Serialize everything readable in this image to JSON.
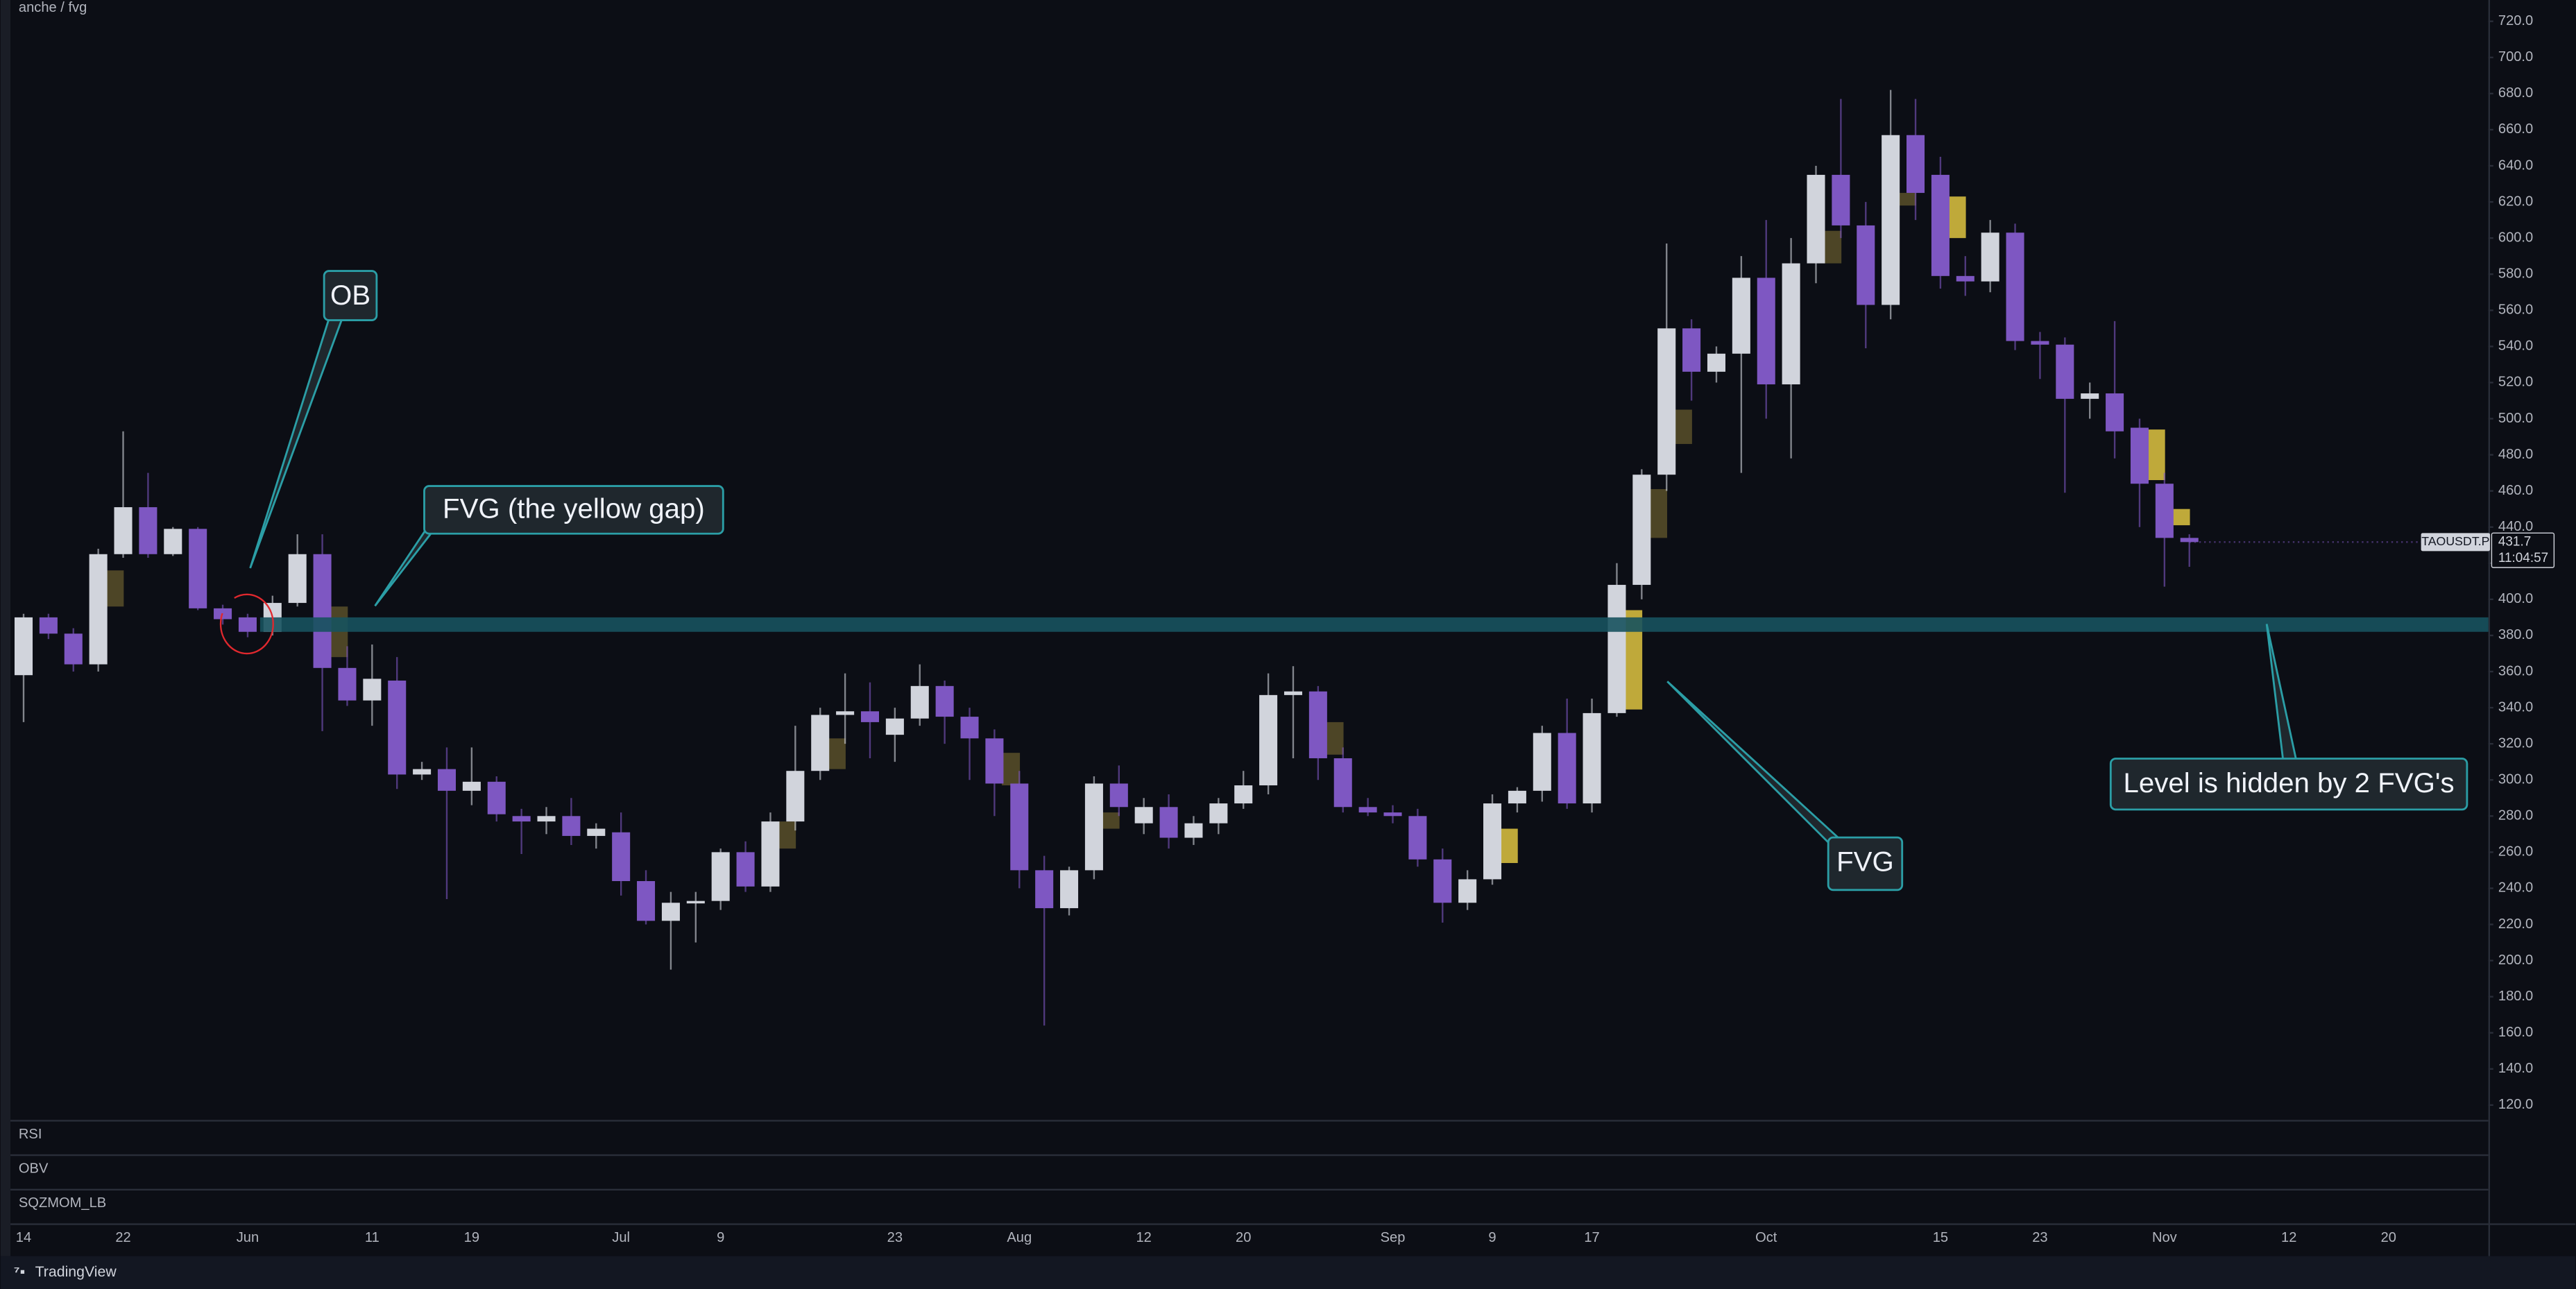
{
  "chart_data": {
    "type": "candlestick",
    "title": "anche / fvg",
    "symbol": "TAOUSDT.P",
    "last_price": 431.7,
    "countdown": "11:04:57",
    "panes": [
      "RSI",
      "OBV",
      "SQZMOM_LB"
    ],
    "brand": "TradingView",
    "up_color": "#d1d4dc",
    "down_color": "#7e57c2",
    "categories": [
      "14",
      null,
      null,
      null,
      "22",
      null,
      null,
      null,
      null,
      "Jun",
      null,
      null,
      null,
      null,
      "11",
      null,
      null,
      null,
      "19",
      null,
      null,
      null,
      null,
      null,
      "Jul",
      null,
      null,
      null,
      "9",
      null,
      null,
      null,
      null,
      null,
      null,
      "23",
      null,
      null,
      null,
      null,
      "Aug",
      null,
      null,
      null,
      null,
      "12",
      null,
      null,
      null,
      "20",
      null,
      null,
      null,
      null,
      null,
      "Sep",
      null,
      null,
      null,
      "9",
      null,
      null,
      null,
      "17",
      null,
      null,
      null,
      null,
      null,
      null,
      "Oct",
      null,
      null,
      null,
      null,
      null,
      null,
      "15",
      null,
      null,
      null,
      "23",
      null,
      null,
      null,
      null,
      "Nov",
      null,
      null,
      null,
      null,
      "12",
      null,
      null,
      null,
      "20"
    ],
    "open": [
      358,
      390,
      381,
      364,
      425,
      451,
      425,
      439,
      395,
      390,
      382,
      398,
      425,
      362,
      344,
      355,
      303,
      306,
      294,
      299,
      280,
      277,
      280,
      269,
      271,
      244,
      222,
      232,
      233,
      260,
      241,
      277,
      305,
      336,
      338,
      325,
      334,
      352,
      335,
      323,
      298,
      250,
      229,
      250,
      298,
      276,
      285,
      268,
      276,
      287,
      297,
      347,
      349,
      312,
      285,
      282,
      280,
      256,
      232,
      245,
      287,
      294,
      326,
      287,
      337,
      408,
      469,
      550,
      526,
      536,
      578,
      519,
      586,
      635,
      607,
      563,
      657,
      635,
      579,
      576,
      603,
      543,
      541,
      511,
      514,
      495,
      464,
      434,
      null,
      null,
      null,
      null,
      null,
      null,
      null,
      null
    ],
    "high": [
      392,
      392,
      384,
      428,
      493,
      470,
      440,
      440,
      397,
      392,
      402,
      436,
      436,
      374,
      375,
      368,
      310,
      318,
      318,
      302,
      284,
      285,
      290,
      276,
      282,
      250,
      238,
      238,
      262,
      266,
      282,
      330,
      340,
      359,
      354,
      340,
      364,
      355,
      340,
      328,
      305,
      258,
      252,
      302,
      308,
      290,
      292,
      280,
      290,
      305,
      359,
      363,
      352,
      318,
      290,
      286,
      284,
      262,
      250,
      292,
      296,
      330,
      345,
      345,
      420,
      472,
      597,
      555,
      540,
      590,
      610,
      600,
      640,
      677,
      620,
      682,
      677,
      645,
      590,
      610,
      608,
      548,
      545,
      520,
      554,
      500,
      470,
      436,
      null,
      null,
      null,
      null,
      null,
      null,
      null,
      null
    ],
    "low": [
      332,
      378,
      360,
      360,
      423,
      423,
      424,
      394,
      386,
      379,
      380,
      396,
      327,
      341,
      330,
      295,
      300,
      234,
      286,
      277,
      259,
      270,
      264,
      262,
      236,
      220,
      195,
      210,
      228,
      238,
      238,
      272,
      300,
      320,
      312,
      310,
      330,
      320,
      300,
      280,
      240,
      164,
      225,
      245,
      280,
      270,
      262,
      264,
      270,
      284,
      292,
      312,
      300,
      282,
      280,
      276,
      252,
      221,
      228,
      242,
      282,
      288,
      284,
      282,
      335,
      400,
      460,
      510,
      520,
      470,
      500,
      478,
      575,
      600,
      539,
      555,
      610,
      572,
      568,
      570,
      538,
      522,
      459,
      500,
      478,
      440,
      407,
      418,
      null,
      null,
      null,
      null,
      null,
      null,
      null,
      null
    ],
    "close": [
      390,
      381,
      364,
      425,
      451,
      425,
      439,
      395,
      389,
      382,
      398,
      425,
      362,
      344,
      356,
      303,
      306,
      294,
      299,
      281,
      277,
      280,
      269,
      273,
      244,
      222,
      232,
      233,
      260,
      241,
      277,
      305,
      336,
      338,
      332,
      334,
      352,
      335,
      323,
      298,
      250,
      229,
      250,
      298,
      285,
      285,
      268,
      276,
      287,
      297,
      347,
      349,
      312,
      285,
      282,
      280,
      256,
      232,
      245,
      287,
      294,
      326,
      287,
      337,
      408,
      469,
      550,
      526,
      536,
      578,
      519,
      586,
      635,
      607,
      563,
      657,
      625,
      579,
      576,
      603,
      543,
      541,
      511,
      514,
      493,
      464,
      434,
      431.7,
      null,
      null,
      null,
      null,
      null,
      null,
      null,
      null
    ],
    "fvg_top": [
      null,
      null,
      null,
      416,
      null,
      null,
      null,
      null,
      null,
      null,
      null,
      null,
      396,
      null,
      null,
      null,
      null,
      null,
      null,
      null,
      null,
      null,
      null,
      null,
      null,
      null,
      null,
      null,
      null,
      null,
      277,
      null,
      323,
      null,
      null,
      null,
      null,
      null,
      null,
      315,
      null,
      null,
      null,
      282,
      null,
      null,
      null,
      null,
      null,
      null,
      null,
      null,
      332,
      null,
      null,
      null,
      null,
      null,
      null,
      273,
      null,
      null,
      null,
      null,
      394,
      461,
      505,
      null,
      null,
      null,
      null,
      null,
      604,
      null,
      null,
      625,
      null,
      623,
      null,
      null,
      null,
      null,
      null,
      null,
      null,
      494,
      450,
      null,
      null,
      null,
      null,
      null,
      null,
      null,
      null,
      null
    ],
    "fvg_bottom": [
      null,
      null,
      null,
      396,
      null,
      null,
      null,
      null,
      null,
      null,
      null,
      null,
      368,
      null,
      null,
      null,
      null,
      null,
      null,
      null,
      null,
      null,
      null,
      null,
      null,
      null,
      null,
      null,
      null,
      null,
      262,
      null,
      306,
      null,
      null,
      null,
      null,
      null,
      null,
      297,
      null,
      null,
      null,
      273,
      null,
      null,
      null,
      null,
      null,
      null,
      null,
      null,
      314,
      null,
      null,
      null,
      null,
      null,
      null,
      254,
      null,
      null,
      null,
      null,
      339,
      434,
      486,
      null,
      null,
      null,
      null,
      null,
      586,
      null,
      null,
      618,
      null,
      600,
      null,
      null,
      null,
      null,
      null,
      null,
      null,
      466,
      441,
      null,
      null,
      null,
      null,
      null,
      null,
      null,
      null,
      null
    ],
    "fvg_color": [
      null,
      null,
      null,
      "#4d4526",
      null,
      null,
      null,
      null,
      null,
      null,
      null,
      null,
      "#4d4526",
      null,
      null,
      null,
      null,
      null,
      null,
      null,
      null,
      null,
      null,
      null,
      null,
      null,
      null,
      null,
      null,
      null,
      "#4d4526",
      null,
      "#4d4526",
      null,
      null,
      null,
      null,
      null,
      null,
      "#4d4526",
      null,
      null,
      null,
      "#4d4526",
      null,
      null,
      null,
      null,
      null,
      null,
      null,
      null,
      "#4d4526",
      null,
      null,
      null,
      null,
      null,
      null,
      "#bfa93a",
      null,
      null,
      null,
      null,
      "#bfa93a",
      "#4d4526",
      "#4d4526",
      null,
      null,
      null,
      null,
      null,
      "#4d4526",
      null,
      null,
      "#4d4526",
      null,
      "#bfa93a",
      null,
      null,
      null,
      null,
      null,
      null,
      null,
      "#bfa93a",
      "#bfa93a",
      null,
      null,
      null,
      null,
      null,
      null,
      null,
      null,
      null
    ],
    "level": {
      "top": 390,
      "bottom": 382,
      "color": "#17525e"
    },
    "ylim": [
      111.8,
      731.8
    ],
    "yticks": [
      {
        "value": 120,
        "label": "120.0"
      },
      {
        "value": 140,
        "label": "140.0"
      },
      {
        "value": 160,
        "label": "160.0"
      },
      {
        "value": 180,
        "label": "180.0"
      },
      {
        "value": 200,
        "label": "200.0"
      },
      {
        "value": 220,
        "label": "220.0"
      },
      {
        "value": 240,
        "label": "240.0"
      },
      {
        "value": 260,
        "label": "260.0"
      },
      {
        "value": 280,
        "label": "280.0"
      },
      {
        "value": 300,
        "label": "300.0"
      },
      {
        "value": 320,
        "label": "320.0"
      },
      {
        "value": 340,
        "label": "340.0"
      },
      {
        "value": 360,
        "label": "360.0"
      },
      {
        "value": 380,
        "label": "380.0"
      },
      {
        "value": 400,
        "label": "400.0"
      },
      {
        "value": 420,
        "label": "420.0"
      },
      {
        "value": 440,
        "label": "440.0"
      },
      {
        "value": 460,
        "label": "460.0"
      },
      {
        "value": 480,
        "label": "480.0"
      },
      {
        "value": 500,
        "label": "500.0"
      },
      {
        "value": 520,
        "label": "520.0"
      },
      {
        "value": 540,
        "label": "540.0"
      },
      {
        "value": 560,
        "label": "560.0"
      },
      {
        "value": 580,
        "label": "580.0"
      },
      {
        "value": 600,
        "label": "600.0"
      },
      {
        "value": 620,
        "label": "620.0"
      },
      {
        "value": 640,
        "label": "640.0"
      },
      {
        "value": 660,
        "label": "660.0"
      },
      {
        "value": 680,
        "label": "680.0"
      },
      {
        "value": 700,
        "label": "700.0"
      },
      {
        "value": 720,
        "label": "720.0"
      }
    ],
    "annotations": [
      "OB",
      "FVG (the yellow gap)",
      "FVG",
      "Level is hidden by 2 FVG's"
    ]
  }
}
